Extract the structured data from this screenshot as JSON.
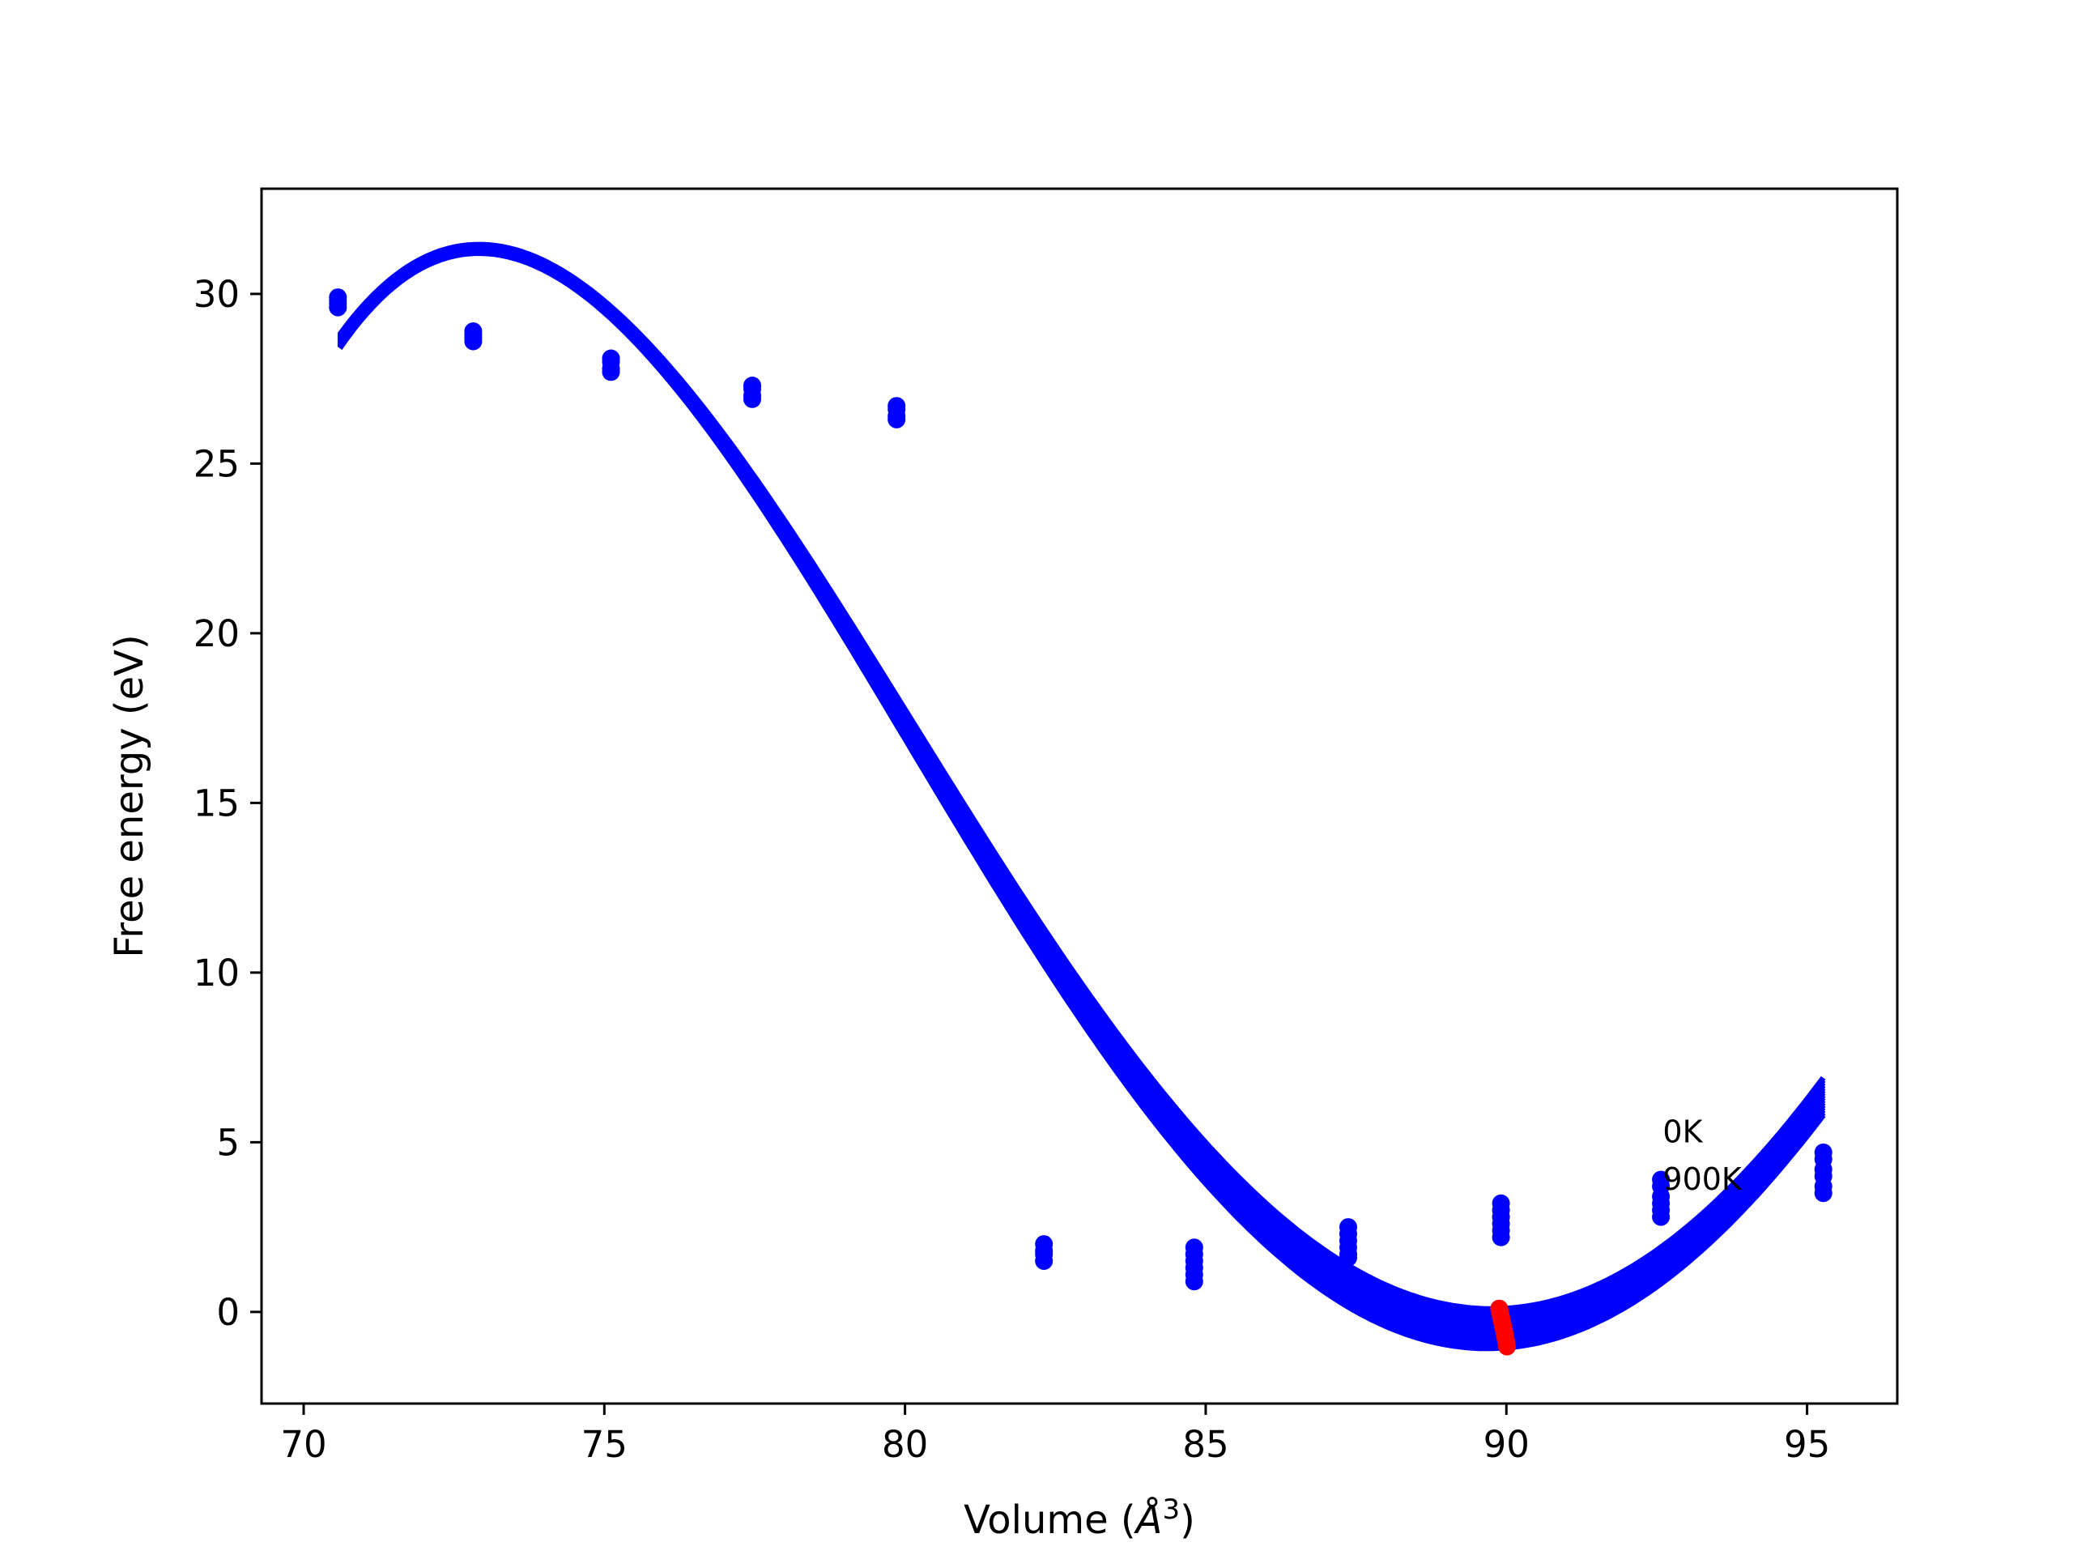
{
  "chart_data": {
    "type": "scatter",
    "title": "",
    "xlabel": "Volume (",
    "xlabel_unit": "Å",
    "xlabel_exp": "3",
    "xlabel_close": ")",
    "ylabel": "Free energy (eV)",
    "xlim": [
      69.3,
      96.5
    ],
    "ylim": [
      -2.7,
      33.1
    ],
    "xticks": [
      70,
      75,
      80,
      85,
      90,
      95
    ],
    "yticks": [
      0,
      5,
      10,
      15,
      20,
      25,
      30
    ],
    "grid": false,
    "legend": "none",
    "colors": {
      "fit": "#0000ff",
      "points": "#0000ff",
      "minima": "#ff0000"
    },
    "annotations": [
      {
        "text": "0K",
        "x": 92.6,
        "y": 5.0
      },
      {
        "text": "900K",
        "x": 92.6,
        "y": 3.6
      }
    ],
    "point_columns": [
      {
        "x": 70.57,
        "y": [
          29.9,
          29.8,
          29.7,
          29.6
        ]
      },
      {
        "x": 72.82,
        "y": [
          28.9,
          28.8,
          28.7,
          28.6
        ]
      },
      {
        "x": 75.11,
        "y": [
          28.1,
          28.0,
          27.8,
          27.7
        ]
      },
      {
        "x": 77.46,
        "y": [
          27.3,
          27.2,
          27.0,
          26.9
        ]
      },
      {
        "x": 79.86,
        "y": [
          26.7,
          26.6,
          26.4,
          26.3
        ]
      },
      {
        "x": 82.31,
        "y": [
          2.0,
          1.8,
          1.7,
          1.5
        ]
      },
      {
        "x": 84.81,
        "y": [
          1.9,
          1.7,
          1.5,
          1.3,
          1.1,
          0.9
        ]
      },
      {
        "x": 87.37,
        "y": [
          2.5,
          2.3,
          2.1,
          1.9,
          1.7,
          1.6
        ]
      },
      {
        "x": 89.91,
        "y": [
          3.2,
          3.0,
          2.8,
          2.6,
          2.4,
          2.2
        ]
      },
      {
        "x": 92.57,
        "y": [
          3.9,
          3.7,
          3.4,
          3.2,
          3.0,
          2.8
        ]
      },
      {
        "x": 95.27,
        "y": [
          4.7,
          4.5,
          4.2,
          4.0,
          3.7,
          3.5
        ]
      }
    ],
    "fit_curves": {
      "count": 16,
      "x_range": [
        70.6,
        95.27
      ],
      "anchor_x": [
        70.6,
        72.85,
        81.5,
        90.0,
        95.27
      ],
      "y_first": [
        28.8,
        31.45,
        13.5,
        0.1,
        6.9
      ],
      "y_last": [
        28.4,
        31.2,
        12.5,
        -1.05,
        5.8
      ]
    },
    "minima": {
      "x": [
        89.88,
        89.89,
        89.9,
        89.91,
        89.92,
        89.93,
        89.94,
        89.95,
        89.96,
        89.97,
        89.98,
        89.99,
        90.0,
        90.01
      ],
      "y": [
        0.1,
        0.02,
        -0.06,
        -0.14,
        -0.22,
        -0.3,
        -0.38,
        -0.46,
        -0.54,
        -0.62,
        -0.72,
        -0.82,
        -0.92,
        -1.02
      ]
    }
  }
}
